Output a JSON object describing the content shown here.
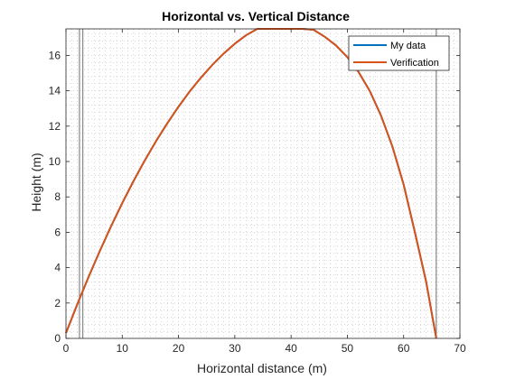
{
  "chart_data": {
    "type": "line",
    "title": "Horizontal vs. Vertical Distance",
    "xlabel": "Horizontal distance (m)",
    "ylabel": "Height (m)",
    "xlim": [
      0,
      70
    ],
    "ylim": [
      0,
      17.5
    ],
    "xticks": [
      0,
      10,
      20,
      30,
      40,
      50,
      60,
      70
    ],
    "yticks": [
      0,
      2,
      4,
      6,
      8,
      10,
      12,
      14,
      16
    ],
    "minor_grid": true,
    "minor_step_x": 1,
    "minor_step_y": 0.4,
    "legend_position": "top-right",
    "reference_lines_x": [
      2.4,
      3.0,
      65.8
    ],
    "series": [
      {
        "name": "My data",
        "color": "#0072BD",
        "x": [
          0,
          2,
          4,
          6,
          8,
          10,
          12,
          14,
          16,
          18,
          20,
          22,
          24,
          26,
          28,
          30,
          32,
          34,
          36,
          37.5,
          38,
          40,
          42,
          44,
          46,
          48,
          50,
          52,
          54,
          56,
          58,
          60,
          62,
          64,
          65.8
        ],
        "y": [
          0.3,
          1.92,
          3.46,
          4.93,
          6.33,
          7.65,
          8.89,
          10.06,
          11.15,
          12.16,
          13.1,
          13.97,
          14.75,
          15.46,
          16.1,
          16.66,
          17.14,
          17.54,
          17.87,
          18.05,
          18.05,
          17.95,
          17.74,
          17.45,
          17.05,
          16.56,
          15.9,
          15.06,
          13.98,
          12.58,
          10.85,
          8.7,
          6.0,
          3.2,
          0.0
        ]
      },
      {
        "name": "Verification",
        "color": "#D95319",
        "x": [
          0,
          2,
          4,
          6,
          8,
          10,
          12,
          14,
          16,
          18,
          20,
          22,
          24,
          26,
          28,
          30,
          32,
          34,
          36,
          37.5,
          38,
          40,
          42,
          44,
          46,
          48,
          50,
          52,
          54,
          56,
          58,
          60,
          62,
          64,
          65.8
        ],
        "y": [
          0.3,
          1.92,
          3.46,
          4.93,
          6.33,
          7.65,
          8.89,
          10.06,
          11.15,
          12.16,
          13.1,
          13.97,
          14.75,
          15.46,
          16.1,
          16.66,
          17.14,
          17.54,
          17.87,
          18.05,
          18.05,
          17.95,
          17.74,
          17.45,
          17.05,
          16.56,
          15.9,
          15.06,
          13.98,
          12.58,
          10.85,
          8.7,
          6.0,
          3.2,
          0.0
        ]
      }
    ]
  }
}
